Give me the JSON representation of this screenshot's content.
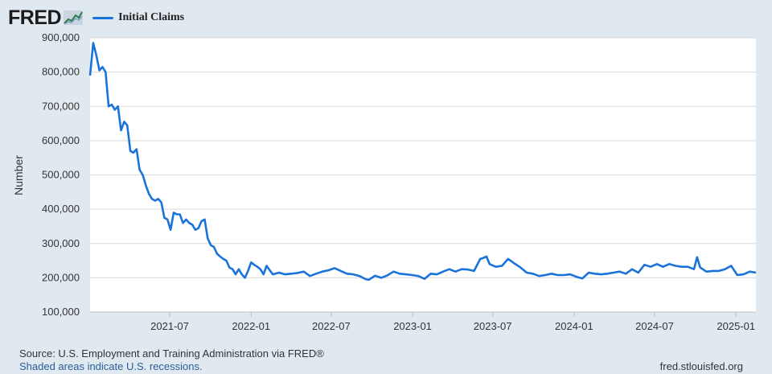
{
  "header": {
    "logo_text": "FRED",
    "legend_label": "Initial Claims",
    "series_color": "#1a73d8"
  },
  "footer": {
    "source": "Source: U.S. Employment and Training Administration via FRED®",
    "recessions_note": "Shaded areas indicate U.S. recessions.",
    "site": "fred.stlouisfed.org"
  },
  "chart_data": {
    "type": "line",
    "ylabel": "Number",
    "ylim": [
      100000,
      900000
    ],
    "y_ticks": [
      100000,
      200000,
      300000,
      400000,
      500000,
      600000,
      700000,
      800000,
      900000
    ],
    "y_tick_labels": [
      "100,000",
      "200,000",
      "300,000",
      "400,000",
      "500,000",
      "600,000",
      "700,000",
      "800,000",
      "900,000"
    ],
    "x_range": [
      "2021-01-02",
      "2025-02-15"
    ],
    "x_ticks": [
      "2021-07-01",
      "2022-01-01",
      "2022-07-01",
      "2023-01-01",
      "2023-07-01",
      "2024-01-01",
      "2024-07-01",
      "2025-01-01"
    ],
    "x_tick_labels": [
      "2021-07",
      "2022-01",
      "2022-07",
      "2023-01",
      "2023-07",
      "2024-01",
      "2024-07",
      "2025-01"
    ],
    "grid": true,
    "legend": "top-left",
    "series": [
      {
        "name": "Initial Claims",
        "color": "#1a73d8",
        "x": [
          "2021-01-02",
          "2021-01-09",
          "2021-01-16",
          "2021-01-23",
          "2021-01-30",
          "2021-02-06",
          "2021-02-13",
          "2021-02-20",
          "2021-02-27",
          "2021-03-06",
          "2021-03-13",
          "2021-03-20",
          "2021-03-27",
          "2021-04-03",
          "2021-04-10",
          "2021-04-17",
          "2021-04-24",
          "2021-05-01",
          "2021-05-08",
          "2021-05-15",
          "2021-05-22",
          "2021-05-29",
          "2021-06-05",
          "2021-06-12",
          "2021-06-19",
          "2021-06-26",
          "2021-07-03",
          "2021-07-10",
          "2021-07-17",
          "2021-07-24",
          "2021-07-31",
          "2021-08-07",
          "2021-08-14",
          "2021-08-21",
          "2021-08-28",
          "2021-09-04",
          "2021-09-11",
          "2021-09-18",
          "2021-09-25",
          "2021-10-02",
          "2021-10-09",
          "2021-10-16",
          "2021-10-23",
          "2021-10-30",
          "2021-11-06",
          "2021-11-13",
          "2021-11-20",
          "2021-11-27",
          "2021-12-04",
          "2021-12-11",
          "2021-12-18",
          "2021-12-25",
          "2022-01-01",
          "2022-01-08",
          "2022-01-15",
          "2022-01-22",
          "2022-01-29",
          "2022-02-05",
          "2022-02-19",
          "2022-03-05",
          "2022-03-19",
          "2022-04-02",
          "2022-04-16",
          "2022-04-30",
          "2022-05-14",
          "2022-05-28",
          "2022-06-11",
          "2022-06-25",
          "2022-07-09",
          "2022-07-23",
          "2022-08-06",
          "2022-08-20",
          "2022-09-03",
          "2022-09-17",
          "2022-09-24",
          "2022-10-08",
          "2022-10-22",
          "2022-11-05",
          "2022-11-19",
          "2022-12-03",
          "2022-12-17",
          "2022-12-31",
          "2023-01-14",
          "2023-01-28",
          "2023-02-11",
          "2023-02-25",
          "2023-03-11",
          "2023-03-25",
          "2023-04-08",
          "2023-04-22",
          "2023-05-06",
          "2023-05-20",
          "2023-06-03",
          "2023-06-10",
          "2023-06-17",
          "2023-06-24",
          "2023-07-08",
          "2023-07-22",
          "2023-08-05",
          "2023-08-19",
          "2023-09-02",
          "2023-09-16",
          "2023-09-30",
          "2023-10-14",
          "2023-10-28",
          "2023-11-11",
          "2023-11-25",
          "2023-12-09",
          "2023-12-23",
          "2024-01-06",
          "2024-01-20",
          "2024-02-03",
          "2024-02-17",
          "2024-03-02",
          "2024-03-16",
          "2024-03-30",
          "2024-04-13",
          "2024-04-27",
          "2024-05-11",
          "2024-05-25",
          "2024-06-08",
          "2024-06-22",
          "2024-07-06",
          "2024-07-20",
          "2024-08-03",
          "2024-08-17",
          "2024-08-31",
          "2024-09-14",
          "2024-09-28",
          "2024-10-05",
          "2024-10-12",
          "2024-10-26",
          "2024-11-09",
          "2024-11-23",
          "2024-12-07",
          "2024-12-21",
          "2025-01-04",
          "2025-01-18",
          "2025-02-01",
          "2025-02-15"
        ],
        "values": [
          790000,
          885000,
          850000,
          805000,
          815000,
          800000,
          700000,
          705000,
          690000,
          700000,
          630000,
          655000,
          645000,
          570000,
          565000,
          575000,
          515000,
          500000,
          470000,
          445000,
          430000,
          425000,
          430000,
          420000,
          375000,
          370000,
          340000,
          390000,
          385000,
          385000,
          360000,
          370000,
          360000,
          355000,
          340000,
          345000,
          365000,
          370000,
          315000,
          295000,
          290000,
          270000,
          262000,
          255000,
          250000,
          230000,
          225000,
          210000,
          225000,
          210000,
          200000,
          220000,
          245000,
          238000,
          232000,
          225000,
          210000,
          235000,
          210000,
          215000,
          210000,
          212000,
          214000,
          218000,
          205000,
          212000,
          218000,
          222000,
          228000,
          220000,
          212000,
          210000,
          205000,
          196000,
          194000,
          206000,
          200000,
          207000,
          218000,
          212000,
          210000,
          208000,
          205000,
          197000,
          212000,
          210000,
          218000,
          225000,
          218000,
          225000,
          224000,
          220000,
          255000,
          258000,
          262000,
          240000,
          232000,
          235000,
          255000,
          242000,
          230000,
          215000,
          212000,
          205000,
          208000,
          212000,
          208000,
          208000,
          210000,
          203000,
          198000,
          215000,
          212000,
          210000,
          212000,
          215000,
          218000,
          212000,
          225000,
          215000,
          238000,
          232000,
          240000,
          232000,
          240000,
          235000,
          232000,
          232000,
          225000,
          260000,
          230000,
          218000,
          220000,
          220000,
          225000,
          235000,
          208000,
          210000,
          218000,
          215000
        ]
      }
    ]
  }
}
